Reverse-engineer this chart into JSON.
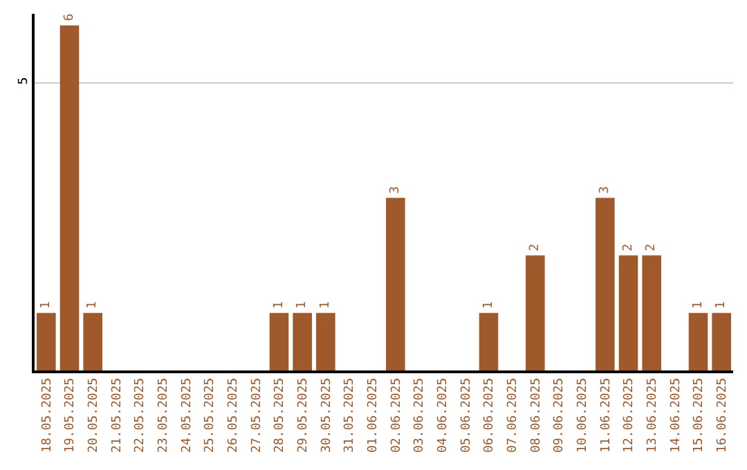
{
  "chart_data": {
    "type": "bar",
    "categories": [
      "18.05.2025",
      "19.05.2025",
      "20.05.2025",
      "21.05.2025",
      "22.05.2025",
      "23.05.2025",
      "24.05.2025",
      "25.05.2025",
      "26.05.2025",
      "27.05.2025",
      "28.05.2025",
      "29.05.2025",
      "30.05.2025",
      "31.05.2025",
      "01.06.2025",
      "02.06.2025",
      "03.06.2025",
      "04.06.2025",
      "05.06.2025",
      "06.06.2025",
      "07.06.2025",
      "08.06.2025",
      "09.06.2025",
      "10.06.2025",
      "11.06.2025",
      "12.06.2025",
      "13.06.2025",
      "14.06.2025",
      "15.06.2025",
      "16.06.2025"
    ],
    "values": [
      1,
      6,
      1,
      0,
      0,
      0,
      0,
      0,
      0,
      0,
      1,
      1,
      1,
      0,
      0,
      3,
      0,
      0,
      0,
      1,
      0,
      2,
      0,
      0,
      3,
      2,
      2,
      0,
      1,
      1
    ],
    "value_labels": [
      "1",
      "6",
      "1",
      null,
      null,
      null,
      null,
      null,
      null,
      null,
      "1",
      "1",
      "1",
      null,
      null,
      "3",
      null,
      null,
      null,
      "1",
      null,
      "2",
      null,
      null,
      "3",
      "2",
      "2",
      null,
      "1",
      "1"
    ],
    "color": "#a0592a",
    "ylim": [
      0,
      6.2
    ],
    "yticks": [
      5
    ],
    "grid": "y",
    "legend": false
  }
}
